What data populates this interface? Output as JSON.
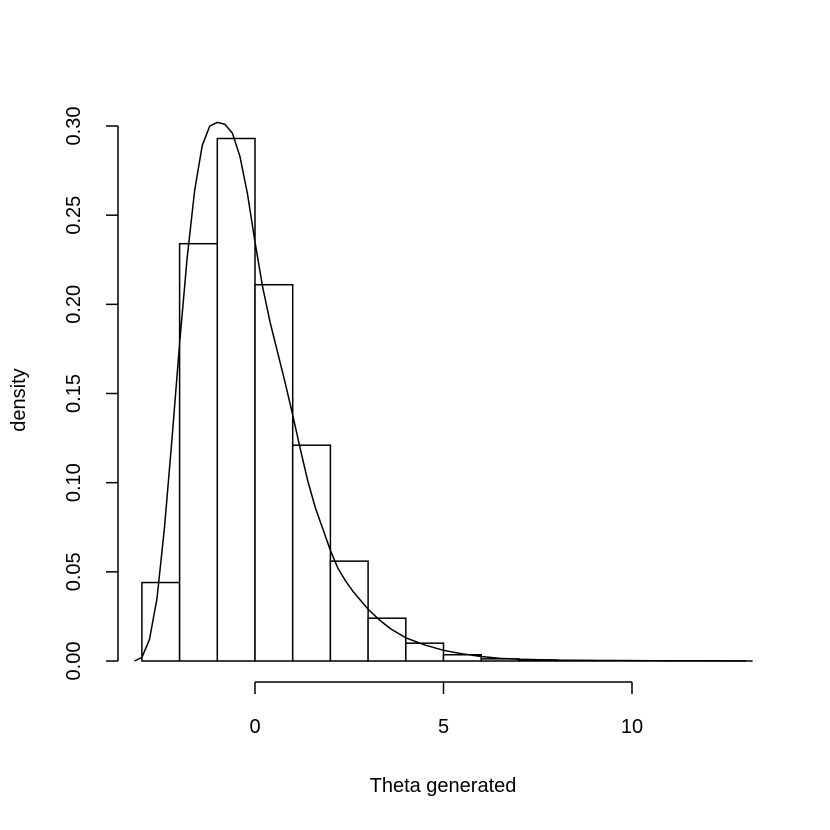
{
  "chart_data": {
    "type": "bar",
    "title": "",
    "xlabel": "Theta generated",
    "ylabel": "density",
    "xlim": [
      -3.3,
      13.2
    ],
    "ylim": [
      0,
      0.3
    ],
    "x_ticks": [
      0,
      5,
      10
    ],
    "x_tick_labels": [
      "0",
      "5",
      "10"
    ],
    "y_ticks": [
      0,
      0.05,
      0.1,
      0.15,
      0.2,
      0.25,
      0.3
    ],
    "y_tick_labels": [
      "0.00",
      "0.05",
      "0.10",
      "0.15",
      "0.20",
      "0.25",
      "0.30"
    ],
    "grid": false,
    "histogram": {
      "bin_edges": [
        -3,
        -2,
        -1,
        0,
        1,
        2,
        3,
        4,
        5,
        6,
        7,
        8,
        9,
        10,
        11,
        12,
        13
      ],
      "densities": [
        0.044,
        0.234,
        0.293,
        0.211,
        0.121,
        0.056,
        0.024,
        0.01,
        0.0035,
        0.0012,
        0.0006,
        0.0003,
        0.0002,
        0.0001,
        0.0001,
        0.0001
      ]
    },
    "density_curve": {
      "x": [
        -3.2,
        -3.0,
        -2.8,
        -2.6,
        -2.4,
        -2.2,
        -2.0,
        -1.8,
        -1.6,
        -1.4,
        -1.2,
        -1.0,
        -0.8,
        -0.6,
        -0.4,
        -0.2,
        0.0,
        0.2,
        0.4,
        0.6,
        0.8,
        1.0,
        1.2,
        1.4,
        1.6,
        1.8,
        2.0,
        2.2,
        2.4,
        2.6,
        2.8,
        3.0,
        3.3,
        3.6,
        4.0,
        4.5,
        5.0,
        5.5,
        6.0,
        6.5,
        7.0,
        8.0,
        9.0,
        10.0,
        11.0,
        12.0,
        13.2
      ],
      "y": [
        0.0,
        0.002,
        0.012,
        0.035,
        0.075,
        0.125,
        0.178,
        0.226,
        0.264,
        0.289,
        0.3,
        0.302,
        0.301,
        0.296,
        0.283,
        0.262,
        0.235,
        0.21,
        0.19,
        0.173,
        0.156,
        0.138,
        0.119,
        0.101,
        0.086,
        0.074,
        0.062,
        0.052,
        0.045,
        0.039,
        0.034,
        0.029,
        0.023,
        0.018,
        0.013,
        0.009,
        0.006,
        0.004,
        0.0025,
        0.0015,
        0.001,
        0.0005,
        0.0003,
        0.0002,
        0.0001,
        0.0001,
        0.0
      ]
    }
  }
}
